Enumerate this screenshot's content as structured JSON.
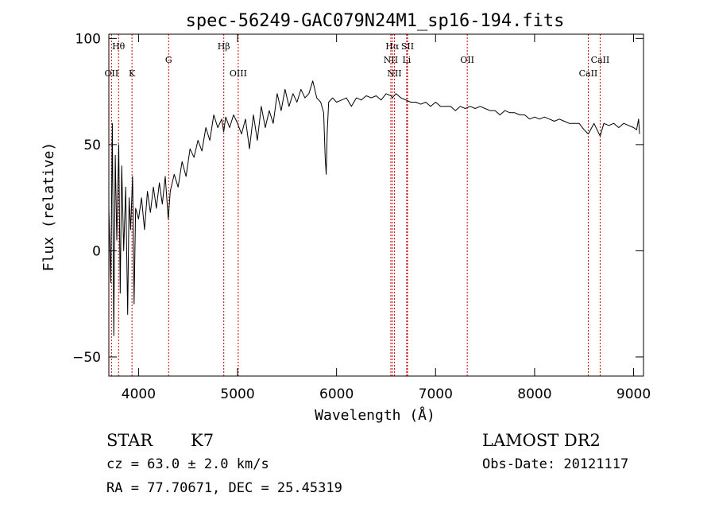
{
  "chart_data": {
    "type": "line",
    "title": "spec-56249-GAC079N24M1_sp16-194.fits",
    "xlabel": "Wavelength (Å)",
    "ylabel": "Flux (relative)",
    "xlim": [
      3700,
      9100
    ],
    "ylim": [
      -59,
      102
    ],
    "xticks": [
      4000,
      5000,
      6000,
      7000,
      8000,
      9000
    ],
    "yticks": [
      -50,
      0,
      50,
      100
    ],
    "grid": false,
    "line_color": "#000000",
    "marker_color": "#cc0000",
    "series": [
      {
        "points": [
          [
            3700,
            20
          ],
          [
            3720,
            -15
          ],
          [
            3735,
            60
          ],
          [
            3750,
            -40
          ],
          [
            3765,
            45
          ],
          [
            3780,
            5
          ],
          [
            3800,
            50
          ],
          [
            3815,
            -20
          ],
          [
            3830,
            40
          ],
          [
            3850,
            0
          ],
          [
            3870,
            30
          ],
          [
            3890,
            -30
          ],
          [
            3905,
            25
          ],
          [
            3920,
            10
          ],
          [
            3940,
            35
          ],
          [
            3955,
            -25
          ],
          [
            3970,
            20
          ],
          [
            4000,
            15
          ],
          [
            4030,
            25
          ],
          [
            4060,
            10
          ],
          [
            4090,
            28
          ],
          [
            4120,
            18
          ],
          [
            4150,
            30
          ],
          [
            4180,
            20
          ],
          [
            4210,
            32
          ],
          [
            4240,
            22
          ],
          [
            4270,
            35
          ],
          [
            4300,
            15
          ],
          [
            4320,
            28
          ],
          [
            4360,
            36
          ],
          [
            4400,
            30
          ],
          [
            4440,
            42
          ],
          [
            4480,
            35
          ],
          [
            4520,
            48
          ],
          [
            4560,
            44
          ],
          [
            4600,
            52
          ],
          [
            4640,
            47
          ],
          [
            4680,
            58
          ],
          [
            4720,
            52
          ],
          [
            4760,
            64
          ],
          [
            4800,
            58
          ],
          [
            4840,
            62
          ],
          [
            4860,
            56
          ],
          [
            4880,
            63
          ],
          [
            4920,
            58
          ],
          [
            4960,
            64
          ],
          [
            5000,
            60
          ],
          [
            5040,
            55
          ],
          [
            5080,
            62
          ],
          [
            5120,
            48
          ],
          [
            5160,
            64
          ],
          [
            5200,
            52
          ],
          [
            5240,
            68
          ],
          [
            5280,
            58
          ],
          [
            5320,
            66
          ],
          [
            5360,
            60
          ],
          [
            5400,
            74
          ],
          [
            5440,
            66
          ],
          [
            5480,
            76
          ],
          [
            5520,
            68
          ],
          [
            5560,
            74
          ],
          [
            5600,
            70
          ],
          [
            5640,
            76
          ],
          [
            5680,
            72
          ],
          [
            5720,
            74
          ],
          [
            5760,
            80
          ],
          [
            5800,
            72
          ],
          [
            5840,
            70
          ],
          [
            5870,
            65
          ],
          [
            5885,
            44
          ],
          [
            5895,
            36
          ],
          [
            5905,
            55
          ],
          [
            5920,
            70
          ],
          [
            5960,
            72
          ],
          [
            6000,
            70
          ],
          [
            6050,
            71
          ],
          [
            6100,
            72
          ],
          [
            6150,
            68
          ],
          [
            6200,
            72
          ],
          [
            6250,
            71
          ],
          [
            6300,
            73
          ],
          [
            6350,
            72
          ],
          [
            6400,
            73
          ],
          [
            6450,
            71
          ],
          [
            6500,
            74
          ],
          [
            6550,
            73
          ],
          [
            6563,
            72
          ],
          [
            6600,
            74
          ],
          [
            6650,
            72
          ],
          [
            6700,
            71
          ],
          [
            6750,
            70
          ],
          [
            6800,
            70
          ],
          [
            6850,
            69
          ],
          [
            6900,
            70
          ],
          [
            6950,
            68
          ],
          [
            7000,
            70
          ],
          [
            7050,
            68
          ],
          [
            7100,
            68
          ],
          [
            7150,
            68
          ],
          [
            7200,
            66
          ],
          [
            7250,
            68
          ],
          [
            7300,
            67
          ],
          [
            7350,
            68
          ],
          [
            7400,
            67
          ],
          [
            7450,
            68
          ],
          [
            7500,
            67
          ],
          [
            7550,
            66
          ],
          [
            7600,
            66
          ],
          [
            7650,
            64
          ],
          [
            7700,
            66
          ],
          [
            7750,
            65
          ],
          [
            7800,
            65
          ],
          [
            7850,
            64
          ],
          [
            7900,
            64
          ],
          [
            7950,
            62
          ],
          [
            8000,
            63
          ],
          [
            8050,
            62
          ],
          [
            8100,
            63
          ],
          [
            8150,
            62
          ],
          [
            8200,
            61
          ],
          [
            8250,
            62
          ],
          [
            8300,
            61
          ],
          [
            8350,
            60
          ],
          [
            8400,
            60
          ],
          [
            8450,
            60
          ],
          [
            8500,
            57
          ],
          [
            8542,
            55
          ],
          [
            8600,
            60
          ],
          [
            8662,
            54
          ],
          [
            8700,
            60
          ],
          [
            8750,
            59
          ],
          [
            8800,
            60
          ],
          [
            8850,
            58
          ],
          [
            8900,
            60
          ],
          [
            8950,
            59
          ],
          [
            9000,
            58
          ],
          [
            9030,
            57
          ],
          [
            9050,
            62
          ],
          [
            9060,
            55
          ]
        ]
      }
    ],
    "annotations": [
      {
        "label": "Hθ",
        "x": 3798,
        "row": 1
      },
      {
        "label": "OII",
        "x": 3727,
        "row": 3
      },
      {
        "label": "K",
        "x": 3934,
        "row": 3
      },
      {
        "label": "G",
        "x": 4304,
        "row": 2
      },
      {
        "label": "Hβ",
        "x": 4861,
        "row": 1
      },
      {
        "label": "OIII",
        "x": 5007,
        "row": 3
      },
      {
        "label": "Hα",
        "x": 6563,
        "row": 1
      },
      {
        "label": "SII",
        "x": 6717,
        "row": 1
      },
      {
        "label": "NII",
        "x": 6548,
        "row": 2
      },
      {
        "label": "Li",
        "x": 6708,
        "row": 2
      },
      {
        "label": "NII",
        "x": 6584,
        "row": 3
      },
      {
        "label": "OII",
        "x": 7320,
        "row": 2
      },
      {
        "label": "CaII",
        "x": 8542,
        "row": 3
      },
      {
        "label": "CaII",
        "x": 8662,
        "row": 2
      }
    ],
    "marker_lines": [
      3727,
      3798,
      3934,
      4304,
      4861,
      5007,
      6548,
      6563,
      6584,
      6708,
      6717,
      7320,
      8542,
      8662
    ]
  },
  "info": {
    "class_label": "STAR",
    "subclass": "K7",
    "survey": "LAMOST DR2",
    "cz_line": "cz = 63.0 ± 2.0 km/s",
    "obs_date": "Obs-Date: 20121117",
    "coords": "RA =  77.70671, DEC =  25.45319"
  }
}
